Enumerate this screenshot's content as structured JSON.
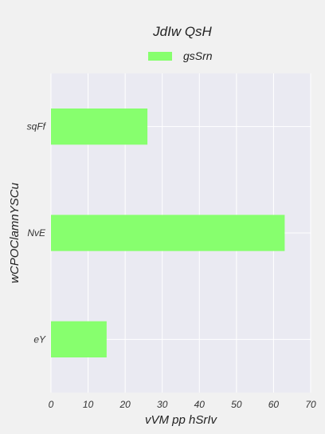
{
  "chart_data": {
    "type": "bar",
    "orientation": "horizontal",
    "title": "JdIw QsH",
    "xlabel": "vVM pp hSrIv",
    "ylabel": "wCPOClamnYSCu",
    "categories": [
      "sqFf",
      "NvE",
      "eY"
    ],
    "series": [
      {
        "name": "gsSrn",
        "values": [
          26,
          63,
          15
        ],
        "color": "#87ff6e"
      }
    ],
    "xlim": [
      0,
      70
    ],
    "xticks": [
      "0",
      "10",
      "20",
      "30",
      "40",
      "50",
      "60",
      "70"
    ],
    "grid": true,
    "legend_position": "top-center",
    "background_color": "#eaeaf2",
    "gridline_color": "#ffffff"
  }
}
